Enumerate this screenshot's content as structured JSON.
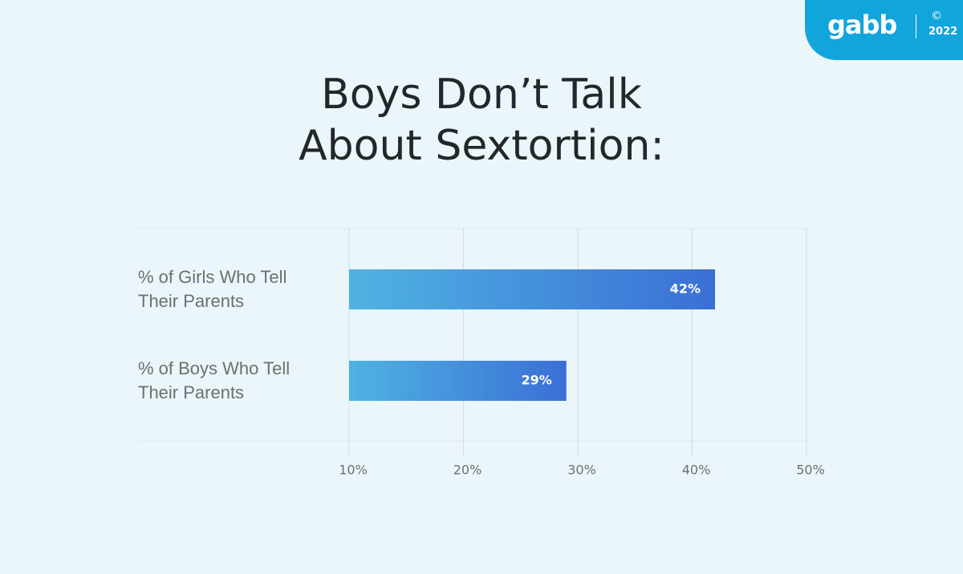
{
  "chart_data": {
    "type": "barh",
    "title": "Boys Don’t Talk About Sextortion:",
    "categories": [
      "% of Girls Who Tell Their Parents",
      "% of Boys Who Tell Their Parents"
    ],
    "values": [
      42,
      29
    ],
    "value_labels": [
      "42%",
      "29%"
    ],
    "gradient": [
      "#4fb3e2",
      "#3a6fd6"
    ],
    "xlim": [
      10,
      50
    ],
    "xticks": [
      {
        "value": 10,
        "label": "10%"
      },
      {
        "value": 20,
        "label": "20%"
      },
      {
        "value": 30,
        "label": "30%"
      },
      {
        "value": 40,
        "label": "40%"
      },
      {
        "value": 50,
        "label": "50%"
      }
    ],
    "grid": true
  },
  "logo": {
    "brand": "gabb",
    "copyright": "©",
    "year": "2022"
  }
}
